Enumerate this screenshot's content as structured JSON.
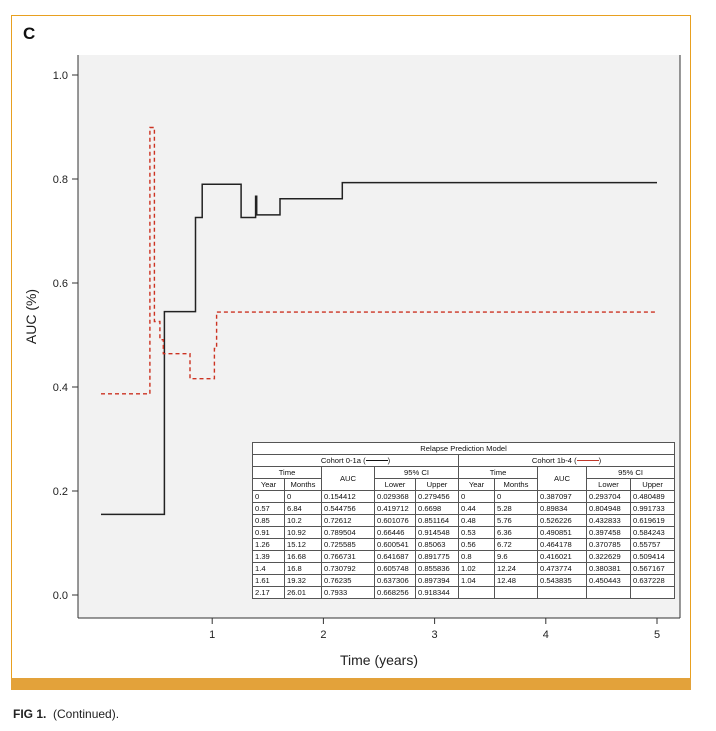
{
  "panel_label": "C",
  "caption": {
    "bold": "FIG 1.",
    "text": "(Continued)."
  },
  "colors": {
    "cohort_a": "#222222",
    "cohort_b": "#cc3322",
    "frame": "#e8a020",
    "bar": "#e3a23a"
  },
  "chart_data": {
    "type": "line",
    "title": "",
    "xlabel": "Time (years)",
    "ylabel": "AUC (%)",
    "xlim": [
      -0.2,
      5.2
    ],
    "ylim": [
      -0.05,
      1.1
    ],
    "xticks": [
      1,
      2,
      3,
      4,
      5
    ],
    "yticks": [
      0.0,
      0.2,
      0.4,
      0.6,
      0.8,
      1.0
    ],
    "ytick_labels": [
      "0.0",
      "0.2",
      "0.4",
      "0.6",
      "0.8",
      "1.0"
    ],
    "series": [
      {
        "style": "solid",
        "color": "#222222",
        "points": [
          [
            0,
            0.155
          ],
          [
            0.57,
            0.155
          ],
          [
            0.57,
            0.545
          ],
          [
            0.85,
            0.545
          ],
          [
            0.85,
            0.726
          ],
          [
            0.91,
            0.726
          ],
          [
            0.91,
            0.79
          ],
          [
            1.26,
            0.79
          ],
          [
            1.26,
            0.726
          ],
          [
            1.39,
            0.726
          ],
          [
            1.39,
            0.767
          ],
          [
            1.4,
            0.767
          ],
          [
            1.4,
            0.731
          ],
          [
            1.61,
            0.731
          ],
          [
            1.61,
            0.762
          ],
          [
            2.17,
            0.762
          ],
          [
            2.17,
            0.793
          ],
          [
            5.0,
            0.793
          ]
        ]
      },
      {
        "style": "dashed",
        "color": "#cc3322",
        "points": [
          [
            0,
            0.387
          ],
          [
            0.44,
            0.387
          ],
          [
            0.44,
            0.899
          ],
          [
            0.48,
            0.899
          ],
          [
            0.48,
            0.526
          ],
          [
            0.53,
            0.526
          ],
          [
            0.53,
            0.491
          ],
          [
            0.56,
            0.491
          ],
          [
            0.56,
            0.464
          ],
          [
            0.8,
            0.464
          ],
          [
            0.8,
            0.416
          ],
          [
            1.02,
            0.416
          ],
          [
            1.02,
            0.474
          ],
          [
            1.04,
            0.474
          ],
          [
            1.04,
            0.544
          ],
          [
            5.0,
            0.544
          ]
        ]
      }
    ]
  },
  "table": {
    "title": "Relapse Prediction Model",
    "cohort_a": "Cohort 0-1a (",
    "cohort_b": "Cohort 1b-4 (",
    "close_paren": ")",
    "h_time": "Time",
    "h_auc": "AUC",
    "h_ci": "95% CI",
    "h_year": "Year",
    "h_months": "Months",
    "h_lower": "Lower",
    "h_upper": "Upper",
    "rows": [
      [
        "0",
        "0",
        "0.154412",
        "0.029368",
        "0.279456",
        "0",
        "0",
        "0.387097",
        "0.293704",
        "0.480489"
      ],
      [
        "0.57",
        "6.84",
        "0.544756",
        "0.419712",
        "0.6698",
        "0.44",
        "5.28",
        "0.89834",
        "0.804948",
        "0.991733"
      ],
      [
        "0.85",
        "10.2",
        "0.72612",
        "0.601076",
        "0.851164",
        "0.48",
        "5.76",
        "0.526226",
        "0.432833",
        "0.619619"
      ],
      [
        "0.91",
        "10.92",
        "0.789504",
        "0.66446",
        "0.914548",
        "0.53",
        "6.36",
        "0.490851",
        "0.397458",
        "0.584243"
      ],
      [
        "1.26",
        "15.12",
        "0.725585",
        "0.600541",
        "0.85063",
        "0.56",
        "6.72",
        "0.464178",
        "0.370785",
        "0.55757"
      ],
      [
        "1.39",
        "16.68",
        "0.766731",
        "0.641687",
        "0.891775",
        "0.8",
        "9.6",
        "0.416021",
        "0.322629",
        "0.509414"
      ],
      [
        "1.4",
        "16.8",
        "0.730792",
        "0.605748",
        "0.855836",
        "1.02",
        "12.24",
        "0.473774",
        "0.380381",
        "0.567167"
      ],
      [
        "1.61",
        "19.32",
        "0.76235",
        "0.637306",
        "0.897394",
        "1.04",
        "12.48",
        "0.543835",
        "0.450443",
        "0.637228"
      ],
      [
        "2.17",
        "26.01",
        "0.7933",
        "0.668256",
        "0.918344",
        "",
        "",
        "",
        "",
        ""
      ]
    ]
  }
}
